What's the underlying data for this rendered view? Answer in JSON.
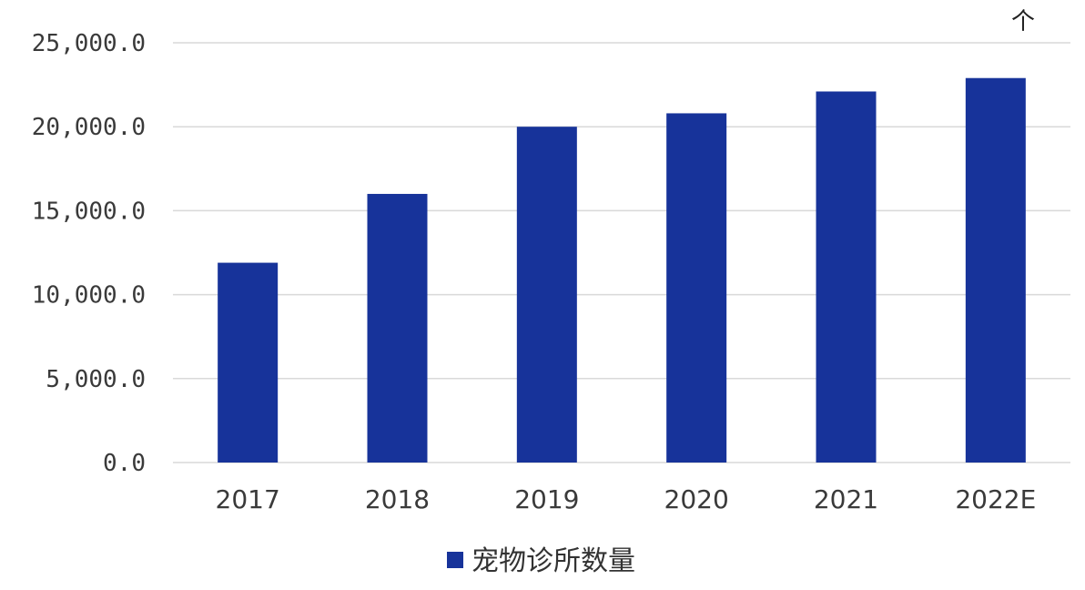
{
  "chart_data": {
    "type": "bar",
    "categories": [
      "2017",
      "2018",
      "2019",
      "2020",
      "2021",
      "2022E"
    ],
    "series": [
      {
        "name": "宠物诊所数量",
        "values": [
          11900,
          16000,
          20000,
          20800,
          22100,
          22900
        ]
      }
    ],
    "ylim": [
      0,
      25000
    ],
    "yticks": [
      "0.0",
      "5,000.0",
      "10,000.0",
      "15,000.0",
      "20,000.0",
      "25,000.0"
    ],
    "ytick_values": [
      0,
      5000,
      10000,
      15000,
      20000,
      25000
    ],
    "unit": "个",
    "grid": true,
    "legend_position": "bottom",
    "bar_color": "#17339a",
    "grid_color": "#d9d9d9"
  }
}
